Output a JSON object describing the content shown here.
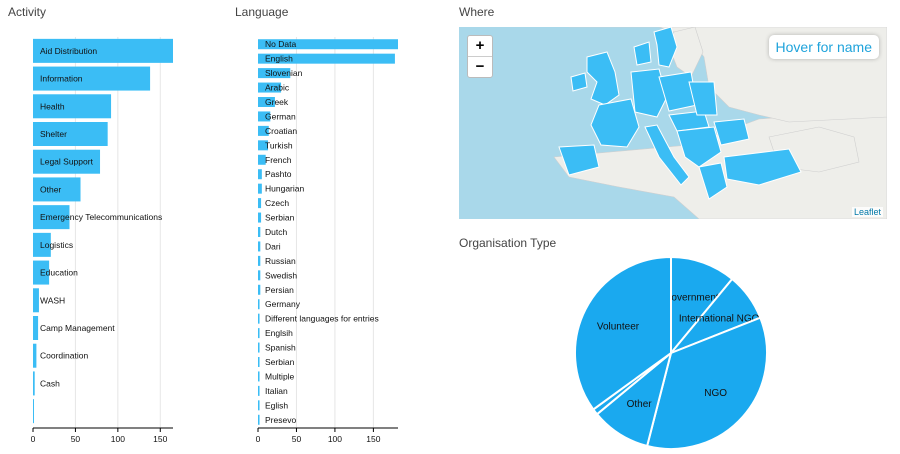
{
  "sections": {
    "activity": "Activity",
    "language": "Language",
    "where": "Where",
    "org": "Organisation Type"
  },
  "map": {
    "zoom_in": "+",
    "zoom_out": "−",
    "hover": "Hover for name",
    "attribution": "Leaflet"
  },
  "colors": {
    "bar": "#3bbdf5",
    "pie": "#1aa9ef",
    "grid": "#e6e6e6",
    "land": "#eeeeea",
    "sea": "#a9d8ea"
  },
  "chart_data": [
    {
      "type": "bar",
      "orientation": "horizontal",
      "title": "Activity",
      "categories": [
        "Aid Distribution",
        "Information",
        "Health",
        "Shelter",
        "Legal Support",
        "Other",
        "Emergency Telecommunications",
        "Logistics",
        "Education",
        "WASH",
        "Camp Management",
        "Coordination",
        "Cash",
        ""
      ],
      "values": [
        165,
        138,
        92,
        88,
        79,
        56,
        43,
        21,
        19,
        7,
        6,
        4,
        2,
        1
      ],
      "xlim": [
        0,
        165
      ],
      "xticks": [
        "0",
        "50",
        "100",
        "150"
      ],
      "grid": true
    },
    {
      "type": "bar",
      "orientation": "horizontal",
      "title": "Language",
      "categories": [
        "No Data",
        "English",
        "Slovenian",
        "Arabic",
        "Greek",
        "German",
        "Croatian",
        "Turkish",
        "French",
        "Pashto",
        "Hungarian",
        "Czech",
        "Serbian",
        "Dutch",
        "Dari",
        "Russian",
        "Swedish",
        "Persian",
        "Germany",
        "Different languages for entries",
        "Englsih",
        "Spanish",
        "Serbian",
        "Multiple",
        "Italian",
        "Eglish",
        "Presevo"
      ],
      "values": [
        182,
        178,
        42,
        30,
        22,
        16,
        14,
        13,
        10,
        5,
        5,
        4,
        4,
        3,
        3,
        3,
        3,
        3,
        2,
        2,
        2,
        2,
        2,
        2,
        2,
        2,
        2
      ],
      "xlim": [
        0,
        182
      ],
      "xticks": [
        "0",
        "50",
        "100",
        "150"
      ],
      "grid": true
    },
    {
      "type": "pie",
      "title": "Organisation Type",
      "labels": [
        "Government",
        "International NGO",
        "NGO",
        "Other",
        "",
        "Volunteer"
      ],
      "values": [
        11,
        8,
        35,
        10,
        1,
        35
      ]
    }
  ]
}
